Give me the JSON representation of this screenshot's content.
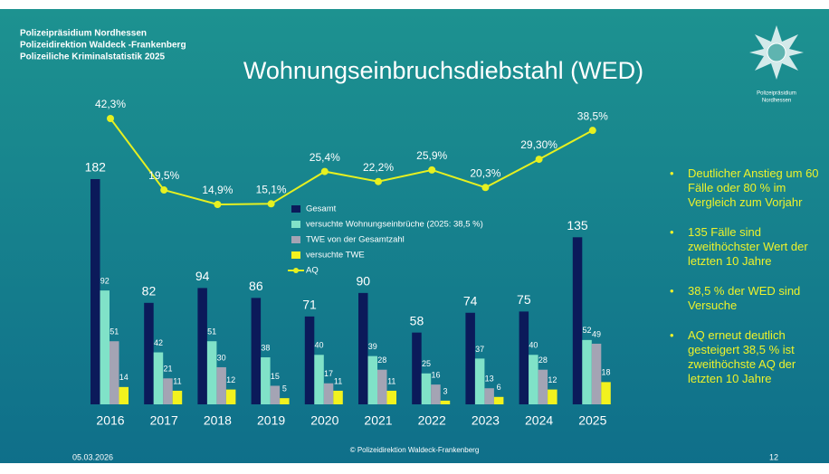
{
  "header": {
    "lines": [
      "Polizeipräsidium Nordhessen",
      "Polizeidirektion Waldeck -Frankenberg",
      "Polizeiliche Kriminalstatistik 2025"
    ],
    "logo_text": [
      "Polizeipräsidium",
      "Nordhessen"
    ]
  },
  "bullets": [
    "Deutlicher Anstieg um 60 Fälle oder 80 % im Vergleich zum Vorjahr",
    "135 Fälle sind zweithöchster Wert der letzten 10 Jahre",
    "38,5 % der WED sind Versuche",
    "AQ erneut deutlich gesteigert 38,5 % ist zweithöchste AQ der letzten 10 Jahre"
  ],
  "footer": {
    "date": "05.03.2026",
    "copyright": "© Polizeidirektion Waldeck-Frankenberg",
    "page": "12"
  },
  "chart_data": {
    "type": "bar",
    "title": "Wohnungseinbruchsdiebstahl (WED)",
    "categories": [
      "2016",
      "2017",
      "2018",
      "2019",
      "2020",
      "2021",
      "2022",
      "2023",
      "2024",
      "2025"
    ],
    "series": [
      {
        "name": "Gesamt",
        "color": "#0b1a5a",
        "values": [
          182,
          82,
          94,
          86,
          71,
          90,
          58,
          74,
          75,
          135
        ]
      },
      {
        "name": "versuchte Wohnungseinbrüche (2025: 38,5 %)",
        "color": "#80e2c8",
        "values": [
          92,
          42,
          51,
          38,
          40,
          39,
          25,
          37,
          40,
          52
        ]
      },
      {
        "name": "TWE von der Gesamtzahl",
        "color": "#a4a4b4",
        "values": [
          51,
          21,
          30,
          15,
          17,
          28,
          16,
          13,
          28,
          49
        ]
      },
      {
        "name": "versuchte TWE",
        "color": "#f2f21e",
        "values": [
          14,
          11,
          12,
          5,
          11,
          11,
          3,
          6,
          12,
          18
        ]
      },
      {
        "name": "AQ",
        "type": "line",
        "color": "#e6f020",
        "values": [
          42.3,
          19.5,
          14.9,
          15.1,
          25.4,
          22.2,
          25.9,
          20.3,
          29.3,
          38.5
        ],
        "value_labels": [
          "42,3%",
          "19,5%",
          "14,9%",
          "15,1%",
          "25,4%",
          "22,2%",
          "25,9%",
          "20,3%",
          "29,30%",
          "38,5%"
        ]
      }
    ]
  }
}
